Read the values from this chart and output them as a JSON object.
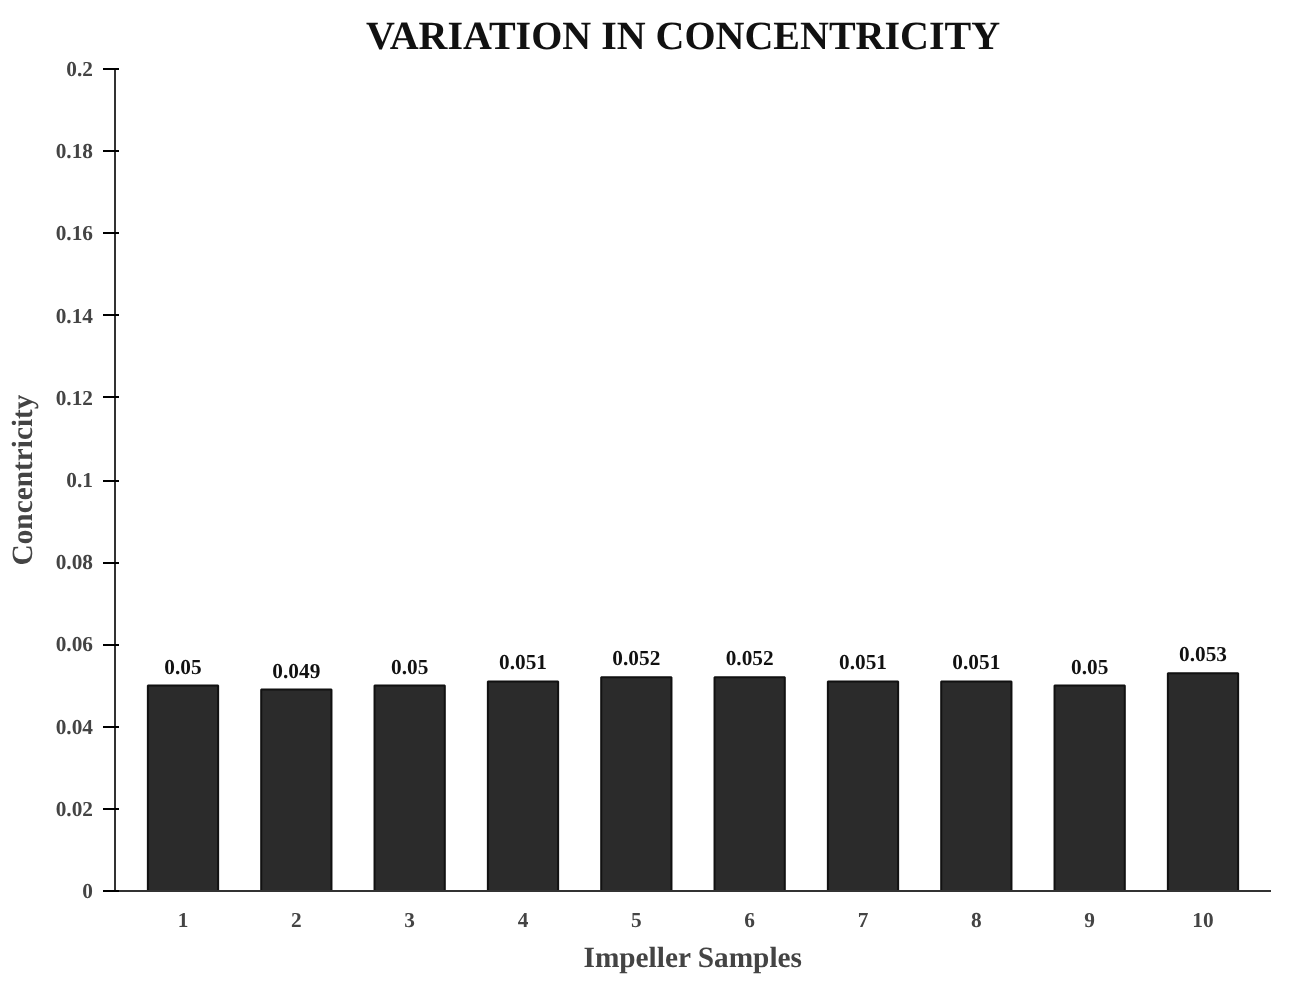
{
  "chart_data": {
    "type": "bar",
    "title": "VARIATION  IN  CONCENTRICITY",
    "xlabel": "Impeller Samples",
    "ylabel": "Concentricity",
    "categories": [
      "1",
      "2",
      "3",
      "4",
      "5",
      "6",
      "7",
      "8",
      "9",
      "10"
    ],
    "values": [
      0.05,
      0.049,
      0.05,
      0.051,
      0.052,
      0.052,
      0.051,
      0.051,
      0.05,
      0.053
    ],
    "color": "#2b2b2b",
    "ylim": [
      0,
      0.2
    ],
    "yticks": [
      0,
      0.02,
      0.04,
      0.06,
      0.08,
      0.1,
      0.12,
      0.14,
      0.16,
      0.18,
      0.2
    ],
    "grid": false,
    "data_labels": true
  }
}
